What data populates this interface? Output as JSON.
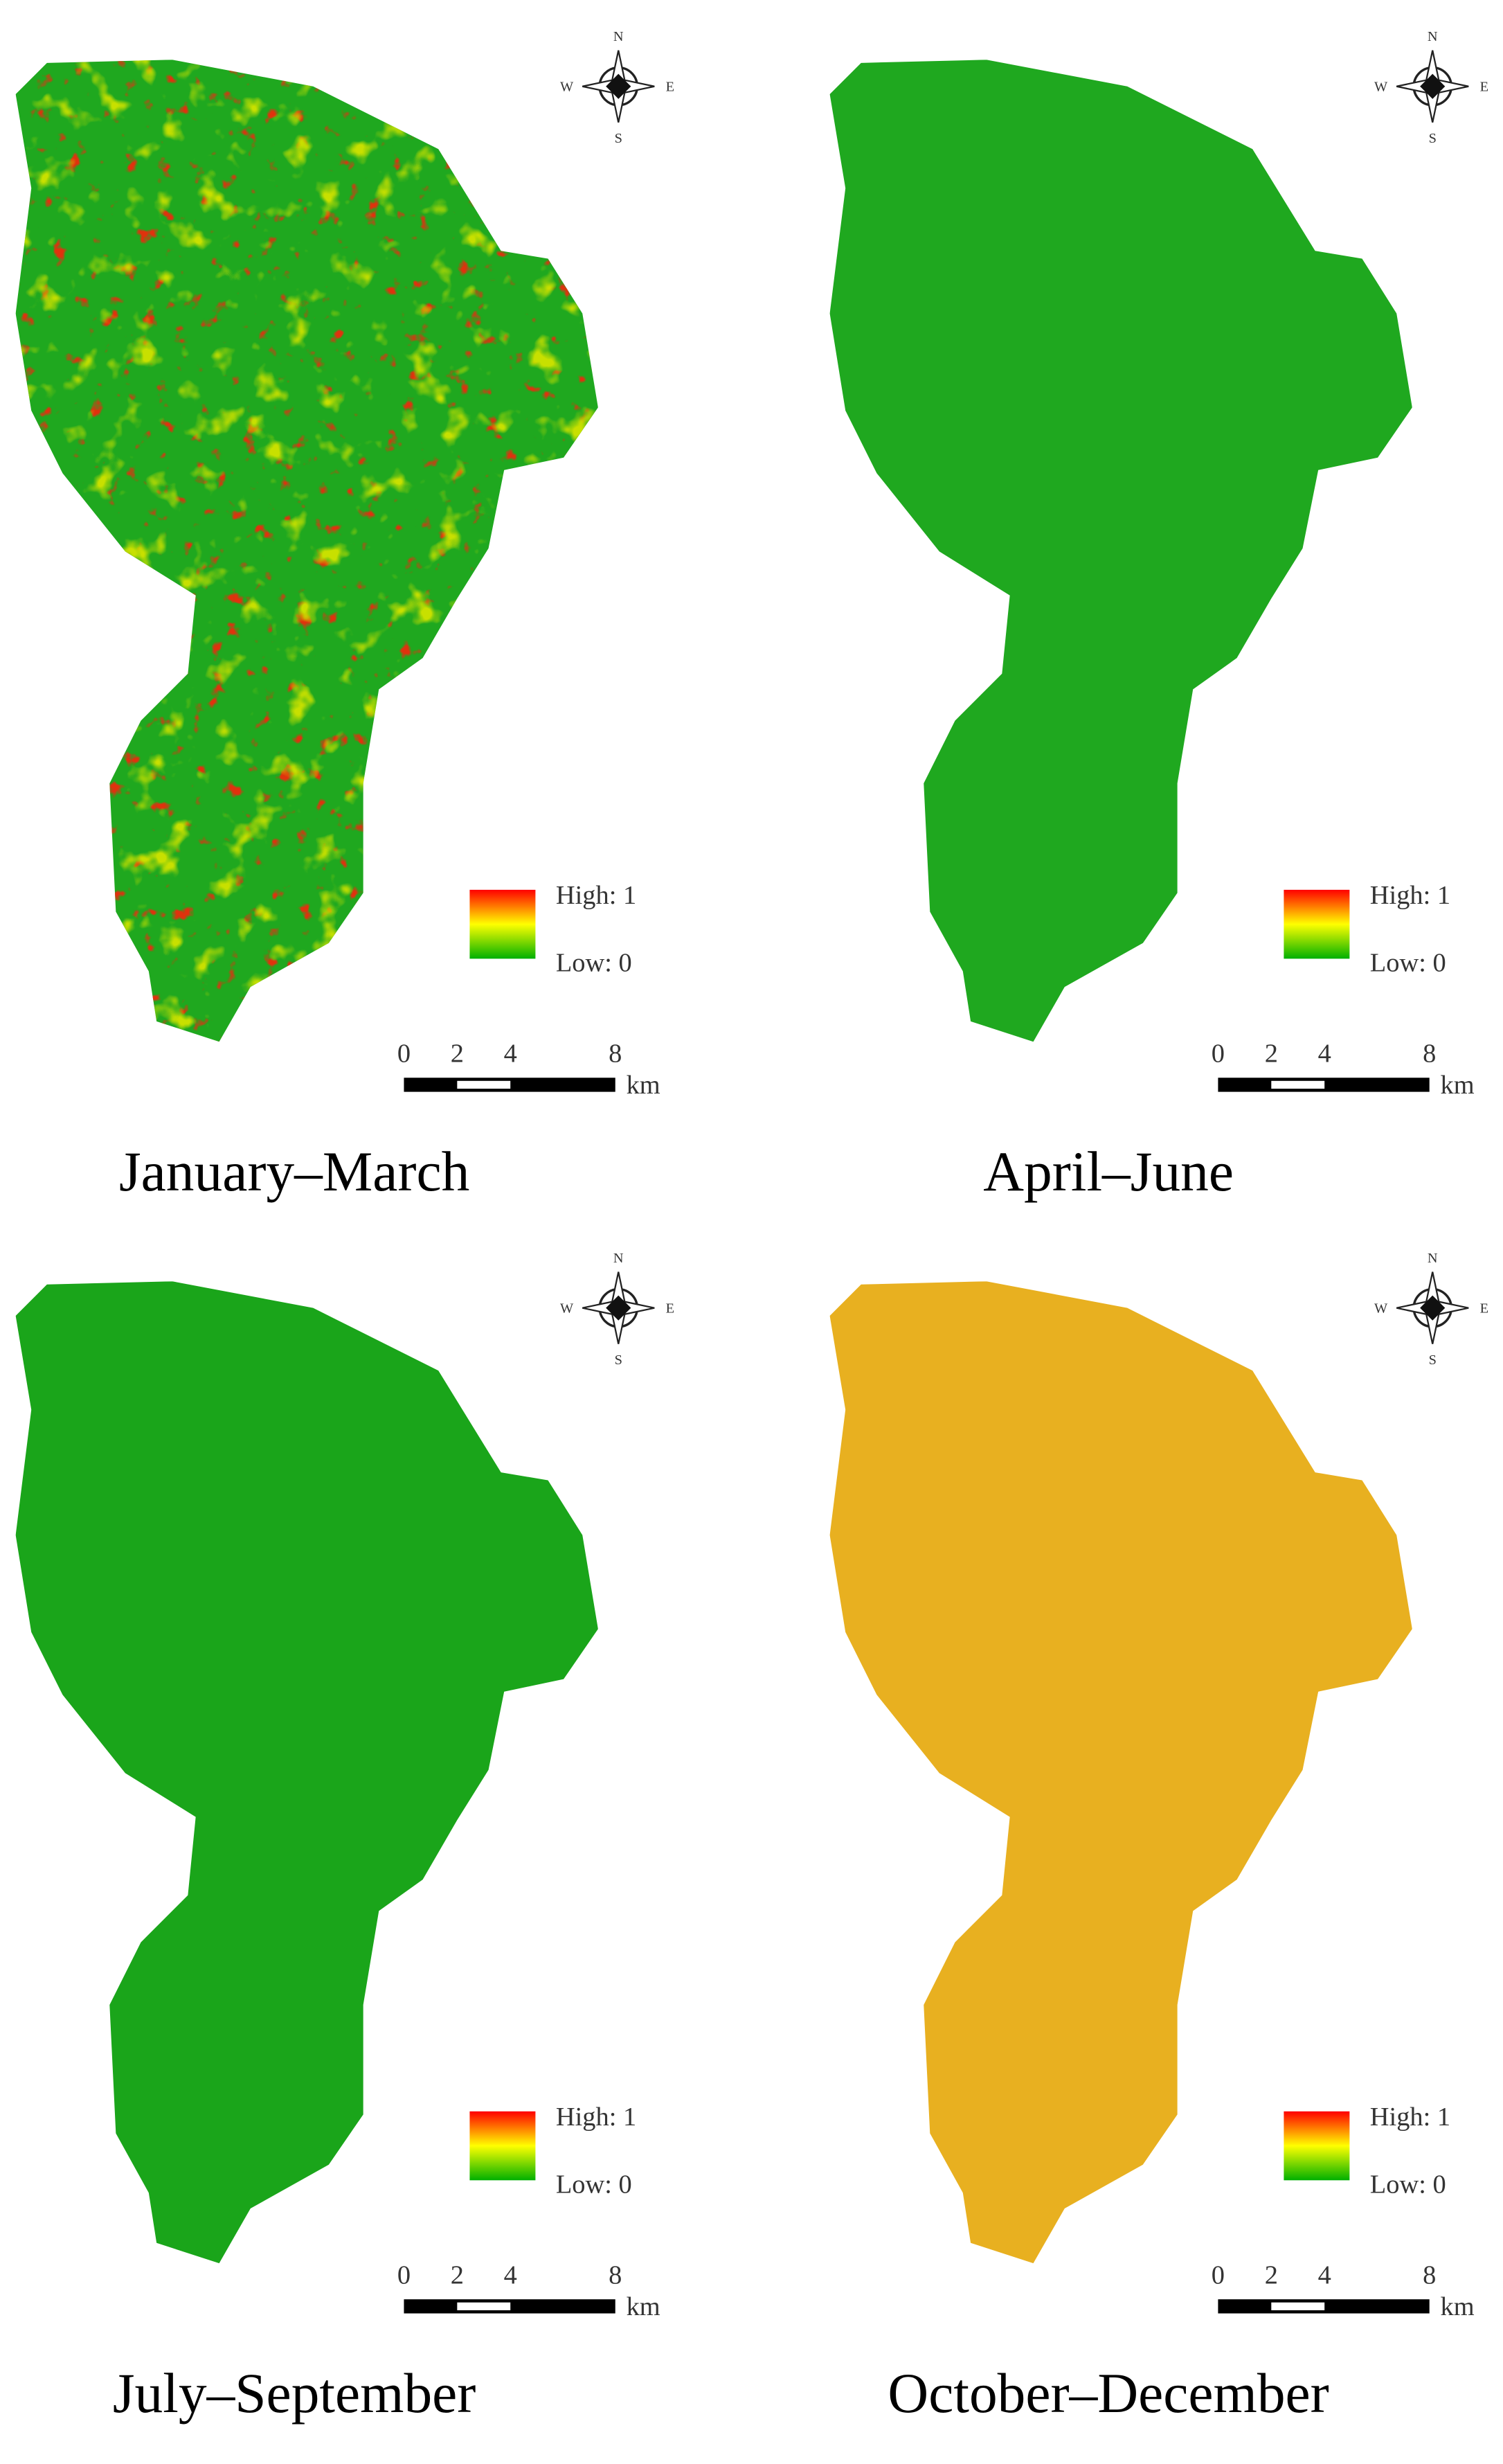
{
  "panels": [
    {
      "title": "January–March",
      "legend": {
        "high": "High: 1",
        "low": "Low: 0"
      },
      "scale": {
        "ticks": [
          "0",
          "2",
          "4",
          "8"
        ],
        "unit": "km"
      },
      "compass": {
        "n": "N",
        "e": "E",
        "s": "S",
        "w": "W"
      }
    },
    {
      "title": "April–June",
      "legend": {
        "high": "High: 1",
        "low": "Low: 0"
      },
      "scale": {
        "ticks": [
          "0",
          "2",
          "4",
          "8"
        ],
        "unit": "km"
      },
      "compass": {
        "n": "N",
        "e": "E",
        "s": "S",
        "w": "W"
      }
    },
    {
      "title": "July–September",
      "legend": {
        "high": "High: 1",
        "low": "Low: 0"
      },
      "scale": {
        "ticks": [
          "0",
          "2",
          "4",
          "8"
        ],
        "unit": "km"
      },
      "compass": {
        "n": "N",
        "e": "E",
        "s": "S",
        "w": "W"
      }
    },
    {
      "title": "October–December",
      "legend": {
        "high": "High: 1",
        "low": "Low: 0"
      },
      "scale": {
        "ticks": [
          "0",
          "2",
          "4",
          "8"
        ],
        "unit": "km"
      },
      "compass": {
        "n": "N",
        "e": "E",
        "s": "S",
        "w": "W"
      }
    }
  ]
}
